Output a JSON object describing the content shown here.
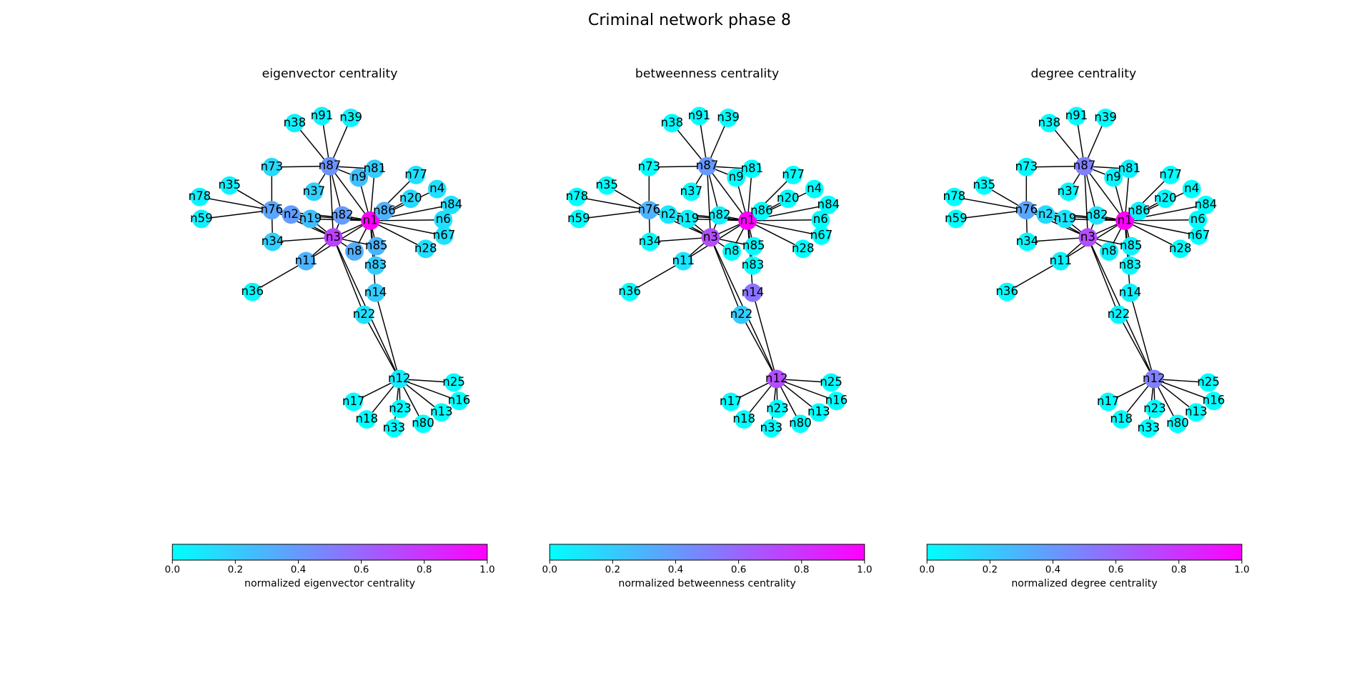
{
  "title": "Criminal network phase 8",
  "nodes": [
    "n1",
    "n3",
    "n87",
    "n12",
    "n76",
    "n2",
    "n19",
    "n82",
    "n86",
    "n85",
    "n8",
    "n11",
    "n83",
    "n14",
    "n22",
    "n9",
    "n81",
    "n37",
    "n38",
    "n91",
    "n39",
    "n73",
    "n35",
    "n78",
    "n59",
    "n34",
    "n36",
    "n77",
    "n4",
    "n20",
    "n84",
    "n6",
    "n67",
    "n28",
    "n25",
    "n17",
    "n16",
    "n23",
    "n13",
    "n18",
    "n80",
    "n33"
  ],
  "panels": [
    {
      "title": "eigenvector centrality",
      "colorbar_label": "normalized eigenvector centrality",
      "centrality": [
        1.0,
        0.75,
        0.42,
        0.08,
        0.35,
        0.38,
        0.25,
        0.38,
        0.3,
        0.3,
        0.32,
        0.3,
        0.2,
        0.2,
        0.12,
        0.25,
        0.2,
        0.18,
        0.05,
        0.05,
        0.05,
        0.15,
        0.05,
        0.05,
        0.05,
        0.18,
        0.02,
        0.12,
        0.12,
        0.15,
        0.12,
        0.12,
        0.12,
        0.12,
        0.0,
        0.0,
        0.0,
        0.0,
        0.0,
        0.0,
        0.0,
        0.0
      ],
      "colorbar_ticks": [
        {
          "value": 0,
          "label": "0.0"
        },
        {
          "value": 0.2,
          "label": "0.2"
        },
        {
          "value": 0.4,
          "label": "0.4"
        },
        {
          "value": 0.6,
          "label": "0.6"
        },
        {
          "value": 0.8,
          "label": "0.8"
        },
        {
          "value": 1,
          "label": "1.0"
        }
      ]
    },
    {
      "title": "betweenness centrality",
      "colorbar_label": "normalized betweenness centrality",
      "centrality": [
        1.0,
        0.7,
        0.4,
        0.7,
        0.3,
        0.1,
        0.05,
        0.05,
        0,
        0.02,
        0,
        0.1,
        0,
        0.55,
        0.2,
        0,
        0,
        0,
        0,
        0,
        0,
        0,
        0,
        0,
        0,
        0,
        0,
        0,
        0,
        0,
        0,
        0,
        0,
        0,
        0,
        0,
        0,
        0,
        0,
        0,
        0,
        0
      ],
      "colorbar_ticks": [
        {
          "value": 0,
          "label": "0.0"
        },
        {
          "value": 0.2,
          "label": "0.2"
        },
        {
          "value": 0.4,
          "label": "0.4"
        },
        {
          "value": 0.6,
          "label": "0.6"
        },
        {
          "value": 0.8,
          "label": "0.8"
        },
        {
          "value": 1,
          "label": "1.0"
        }
      ]
    },
    {
      "title": "degree centrality",
      "colorbar_label": "normalized degree centrality",
      "centrality": [
        1.0,
        0.7,
        0.5,
        0.5,
        0.35,
        0.15,
        0.1,
        0.1,
        0.05,
        0.05,
        0.05,
        0.05,
        0.02,
        0.05,
        0.05,
        0.03,
        0.05,
        0.02,
        0,
        0,
        0,
        0.02,
        0,
        0,
        0,
        0.02,
        0,
        0,
        0,
        0.02,
        0,
        0,
        0,
        0,
        0,
        0,
        0,
        0,
        0,
        0,
        0,
        0
      ],
      "colorbar_ticks": [
        {
          "value": 0,
          "label": "0.0"
        },
        {
          "value": 0.2,
          "label": "0.2"
        },
        {
          "value": 0.4,
          "label": "0.4"
        },
        {
          "value": 0.6,
          "label": "0.6"
        },
        {
          "value": 0.8,
          "label": "0.8"
        },
        {
          "value": 1,
          "label": "1.0"
        }
      ]
    }
  ]
}
